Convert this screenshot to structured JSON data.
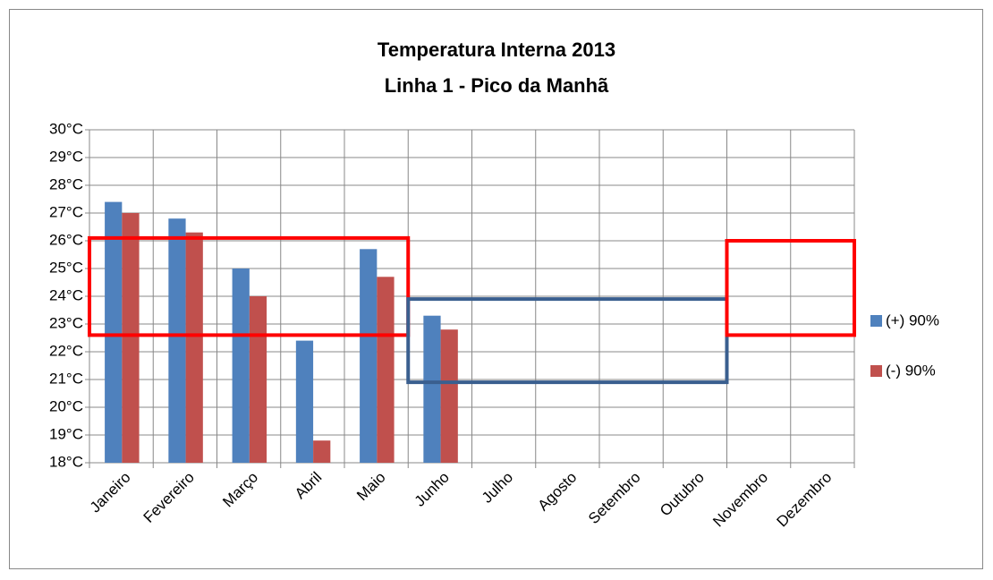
{
  "chart_data": {
    "type": "bar",
    "title": "Temperatura Interna 2013",
    "subtitle": "Linha 1 - Pico da Manhã",
    "categories": [
      "Janeiro",
      "Fevereiro",
      "Março",
      "Abril",
      "Maio",
      "Junho",
      "Julho",
      "Agosto",
      "Setembro",
      "Outubro",
      "Novembro",
      "Dezembro"
    ],
    "series": [
      {
        "name": "(+) 90%",
        "color": "#4f81bd",
        "values": [
          27.4,
          26.8,
          25.0,
          22.4,
          25.7,
          23.3,
          null,
          null,
          null,
          null,
          null,
          null
        ]
      },
      {
        "name": "(-) 90%",
        "color": "#c0504d",
        "values": [
          27.0,
          26.3,
          24.0,
          18.8,
          24.7,
          22.8,
          null,
          null,
          null,
          null,
          null,
          null
        ]
      }
    ],
    "ylim": [
      18,
      30
    ],
    "yticks": [
      {
        "value": 18,
        "label": "18°C"
      },
      {
        "value": 19,
        "label": "19°C"
      },
      {
        "value": 20,
        "label": "20°C"
      },
      {
        "value": 21,
        "label": "21°C"
      },
      {
        "value": 22,
        "label": "22°C"
      },
      {
        "value": 23,
        "label": "23°C"
      },
      {
        "value": 24,
        "label": "24°C"
      },
      {
        "value": 25,
        "label": "25°C"
      },
      {
        "value": 26,
        "label": "26°C"
      },
      {
        "value": 27,
        "label": "27°C"
      },
      {
        "value": 28,
        "label": "28°C"
      },
      {
        "value": 29,
        "label": "29°C"
      },
      {
        "value": 30,
        "label": "30°C"
      }
    ],
    "grid": true,
    "legend": "right",
    "highlight_boxes": [
      {
        "from": "Janeiro",
        "to": "Maio",
        "ymin": 22.6,
        "ymax": 26.1,
        "color": "#ff0000"
      },
      {
        "from": "Junho",
        "to": "Outubro",
        "ymin": 20.9,
        "ymax": 23.9,
        "color": "#3a5f8f"
      },
      {
        "from": "Novembro",
        "to": "Dezembro",
        "ymin": 22.6,
        "ymax": 26.0,
        "color": "#ff0000"
      }
    ]
  }
}
